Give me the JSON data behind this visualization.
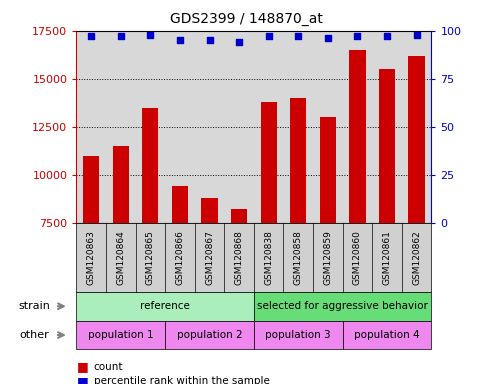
{
  "title": "GDS2399 / 148870_at",
  "categories": [
    "GSM120863",
    "GSM120864",
    "GSM120865",
    "GSM120866",
    "GSM120867",
    "GSM120868",
    "GSM120838",
    "GSM120858",
    "GSM120859",
    "GSM120860",
    "GSM120861",
    "GSM120862"
  ],
  "bar_values": [
    11000,
    11500,
    13500,
    9400,
    8800,
    8200,
    13800,
    14000,
    13000,
    16500,
    15500,
    16200
  ],
  "percentile_values": [
    97,
    97,
    98,
    95,
    95,
    94,
    97,
    97,
    96,
    97,
    97,
    98
  ],
  "bar_color": "#cc0000",
  "dot_color": "#0000cc",
  "ylim_left": [
    7500,
    17500
  ],
  "ylim_right": [
    0,
    100
  ],
  "yticks_left": [
    7500,
    10000,
    12500,
    15000,
    17500
  ],
  "yticks_right": [
    0,
    25,
    50,
    75,
    100
  ],
  "strain_labels": [
    {
      "text": "reference",
      "start": 0,
      "end": 6,
      "color": "#aaeebb"
    },
    {
      "text": "selected for aggressive behavior",
      "start": 6,
      "end": 12,
      "color": "#66dd77"
    }
  ],
  "other_labels": [
    {
      "text": "population 1",
      "start": 0,
      "end": 3,
      "color": "#ee88ee"
    },
    {
      "text": "population 2",
      "start": 3,
      "end": 6,
      "color": "#ee88ee"
    },
    {
      "text": "population 3",
      "start": 6,
      "end": 9,
      "color": "#ee88ee"
    },
    {
      "text": "population 4",
      "start": 9,
      "end": 12,
      "color": "#ee88ee"
    }
  ],
  "legend_count_color": "#cc0000",
  "legend_percentile_color": "#0000cc",
  "bg_color": "#ffffff",
  "left_axis_color": "#cc0000",
  "right_axis_color": "#0000cc",
  "plot_bg_color": "#d8d8d8",
  "xtick_bg_color": "#d0d0d0"
}
